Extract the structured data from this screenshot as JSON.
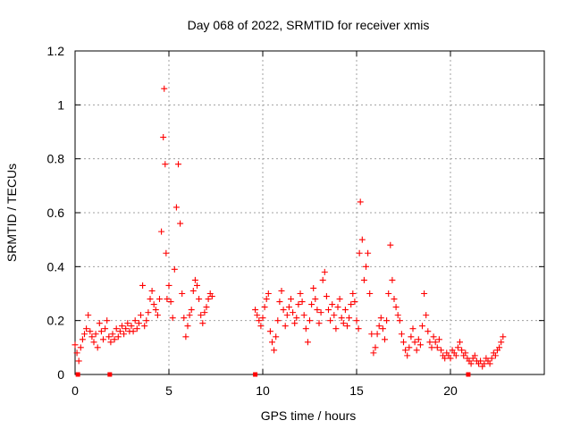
{
  "chart_data": {
    "type": "scatter",
    "title": "Day 068 of 2022, SRMTID for receiver xmis",
    "xlabel": "GPS time / hours",
    "ylabel": "SRMTID / TECUs",
    "xlim": [
      0,
      25
    ],
    "ylim": [
      0,
      1.2
    ],
    "x_ticks": [
      0,
      5,
      10,
      15,
      20
    ],
    "x_tick_labels": [
      "0",
      "5",
      "10",
      "15",
      "20"
    ],
    "y_ticks": [
      0,
      0.2,
      0.4,
      0.6,
      0.8,
      1.0,
      1.2
    ],
    "y_tick_labels": [
      "0",
      "0.2",
      "0.4",
      "0.6",
      "0.8",
      "1",
      "1.2"
    ],
    "grid": true,
    "marker": "+",
    "color": "#ff0000",
    "series": [
      {
        "name": "SRMTID",
        "x": [
          0.0,
          0.1,
          0.2,
          0.3,
          0.4,
          0.5,
          0.6,
          0.7,
          0.8,
          0.9,
          1.0,
          1.1,
          1.2,
          1.3,
          1.4,
          1.5,
          1.6,
          1.7,
          1.8,
          1.9,
          2.0,
          2.1,
          2.2,
          2.3,
          2.4,
          2.5,
          2.6,
          2.7,
          2.8,
          2.9,
          3.0,
          3.1,
          3.2,
          3.3,
          3.4,
          3.5,
          3.6,
          3.7,
          3.8,
          3.9,
          4.0,
          4.1,
          4.2,
          4.3,
          4.4,
          4.5,
          4.6,
          4.7,
          4.75,
          4.8,
          4.85,
          4.9,
          5.0,
          5.1,
          5.2,
          5.3,
          5.4,
          5.5,
          5.6,
          5.7,
          5.8,
          5.9,
          6.0,
          6.1,
          6.2,
          6.3,
          6.4,
          6.5,
          6.6,
          6.7,
          6.8,
          6.9,
          7.0,
          7.1,
          7.2,
          7.3,
          9.6,
          9.7,
          9.8,
          9.9,
          10.0,
          10.1,
          10.2,
          10.3,
          10.4,
          10.5,
          10.6,
          10.7,
          10.8,
          10.9,
          11.0,
          11.1,
          11.2,
          11.3,
          11.4,
          11.5,
          11.6,
          11.7,
          11.8,
          11.9,
          12.0,
          12.1,
          12.2,
          12.3,
          12.4,
          12.5,
          12.6,
          12.7,
          12.8,
          12.9,
          13.0,
          13.1,
          13.2,
          13.3,
          13.4,
          13.5,
          13.6,
          13.7,
          13.8,
          13.9,
          14.0,
          14.1,
          14.2,
          14.3,
          14.4,
          14.5,
          14.6,
          14.7,
          14.8,
          14.9,
          15.0,
          15.1,
          15.15,
          15.2,
          15.3,
          15.4,
          15.5,
          15.6,
          15.7,
          15.8,
          15.9,
          16.0,
          16.1,
          16.2,
          16.3,
          16.4,
          16.5,
          16.6,
          16.7,
          16.8,
          16.9,
          17.0,
          17.1,
          17.2,
          17.3,
          17.4,
          17.5,
          17.6,
          17.7,
          17.8,
          17.9,
          18.0,
          18.1,
          18.2,
          18.3,
          18.4,
          18.5,
          18.6,
          18.7,
          18.8,
          18.9,
          19.0,
          19.1,
          19.2,
          19.3,
          19.4,
          19.5,
          19.6,
          19.7,
          19.8,
          19.9,
          20.0,
          20.1,
          20.2,
          20.3,
          20.4,
          20.5,
          20.6,
          20.7,
          20.8,
          20.9,
          21.0,
          21.1,
          21.2,
          21.3,
          21.4,
          21.5,
          21.6,
          21.7,
          21.8,
          21.9,
          22.0,
          22.1,
          22.2,
          22.3,
          22.4,
          22.5,
          22.6,
          22.7,
          22.8
        ],
        "y": [
          0.11,
          0.08,
          0.05,
          0.1,
          0.13,
          0.15,
          0.17,
          0.22,
          0.16,
          0.14,
          0.12,
          0.15,
          0.1,
          0.19,
          0.16,
          0.13,
          0.17,
          0.2,
          0.14,
          0.12,
          0.15,
          0.13,
          0.17,
          0.14,
          0.16,
          0.18,
          0.15,
          0.17,
          0.19,
          0.16,
          0.18,
          0.16,
          0.2,
          0.17,
          0.19,
          0.22,
          0.33,
          0.18,
          0.2,
          0.23,
          0.28,
          0.31,
          0.26,
          0.24,
          0.22,
          0.28,
          0.53,
          0.88,
          1.06,
          0.78,
          0.45,
          0.28,
          0.33,
          0.27,
          0.21,
          0.39,
          0.62,
          0.78,
          0.56,
          0.3,
          0.21,
          0.14,
          0.18,
          0.22,
          0.24,
          0.31,
          0.35,
          0.33,
          0.28,
          0.22,
          0.19,
          0.23,
          0.25,
          0.28,
          0.3,
          0.29,
          0.24,
          0.22,
          0.2,
          0.18,
          0.21,
          0.25,
          0.28,
          0.3,
          0.16,
          0.12,
          0.09,
          0.14,
          0.2,
          0.27,
          0.31,
          0.24,
          0.18,
          0.22,
          0.25,
          0.28,
          0.23,
          0.19,
          0.21,
          0.26,
          0.3,
          0.27,
          0.22,
          0.17,
          0.12,
          0.2,
          0.26,
          0.32,
          0.28,
          0.24,
          0.19,
          0.23,
          0.35,
          0.38,
          0.29,
          0.24,
          0.2,
          0.26,
          0.22,
          0.17,
          0.25,
          0.28,
          0.21,
          0.19,
          0.24,
          0.18,
          0.21,
          0.26,
          0.3,
          0.27,
          0.2,
          0.17,
          0.45,
          0.64,
          0.5,
          0.35,
          0.4,
          0.45,
          0.3,
          0.15,
          0.08,
          0.1,
          0.15,
          0.18,
          0.21,
          0.17,
          0.13,
          0.2,
          0.3,
          0.48,
          0.35,
          0.28,
          0.25,
          0.22,
          0.2,
          0.15,
          0.12,
          0.09,
          0.07,
          0.1,
          0.14,
          0.17,
          0.12,
          0.09,
          0.13,
          0.11,
          0.18,
          0.3,
          0.22,
          0.16,
          0.12,
          0.1,
          0.14,
          0.12,
          0.1,
          0.13,
          0.09,
          0.07,
          0.06,
          0.08,
          0.07,
          0.06,
          0.09,
          0.08,
          0.07,
          0.1,
          0.12,
          0.09,
          0.07,
          0.08,
          0.06,
          0.05,
          0.04,
          0.06,
          0.07,
          0.05,
          0.04,
          0.05,
          0.03,
          0.04,
          0.06,
          0.05,
          0.04,
          0.06,
          0.08,
          0.07,
          0.09,
          0.1,
          0.12,
          0.14
        ]
      }
    ],
    "gap_markers_x": [
      0.15,
      1.85,
      9.6,
      20.95
    ]
  }
}
